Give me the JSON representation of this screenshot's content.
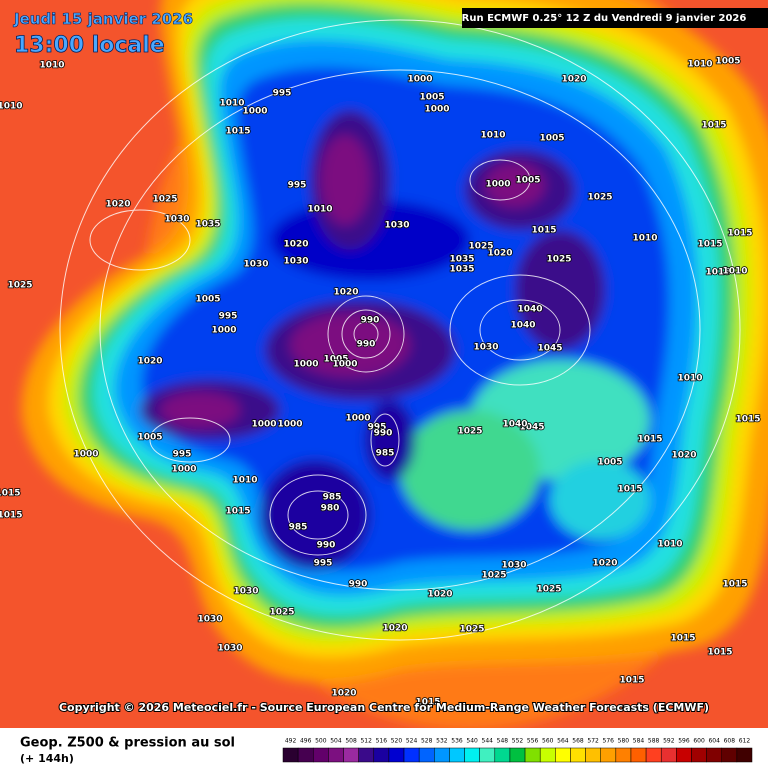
{
  "header": {
    "date": "Jeudi 15 janvier 2026",
    "time": "13:00 locale",
    "run": "Run ECMWF 0.25° 12 Z du Vendredi 9 janvier 2026"
  },
  "copyright": "Copyright © 2026 Meteociel.fr - Source European Centre for Medium-Range Weather Forecasts (ECMWF)",
  "footer": {
    "title": "Geop. Z500 & pression au sol",
    "lead": "(+ 144h)"
  },
  "colorbar": {
    "values": [
      492,
      496,
      500,
      504,
      508,
      512,
      516,
      520,
      524,
      528,
      532,
      536,
      540,
      544,
      548,
      552,
      556,
      560,
      564,
      568,
      572,
      576,
      580,
      584,
      588,
      592,
      596,
      600,
      604,
      608,
      612
    ],
    "colors": [
      "#2a0030",
      "#460050",
      "#62006a",
      "#7c1080",
      "#9a2aa0",
      "#3a0a8a",
      "#1a00a0",
      "#0000d0",
      "#0030ff",
      "#0064ff",
      "#0096ff",
      "#00c8ff",
      "#00f0f0",
      "#40f0c0",
      "#00d890",
      "#00c040",
      "#80e000",
      "#c8ff00",
      "#ffff00",
      "#ffe000",
      "#ffc000",
      "#ffa000",
      "#ff8000",
      "#ff6000",
      "#ff4020",
      "#e83030",
      "#c80000",
      "#a00000",
      "#800000",
      "#600000",
      "#400000"
    ]
  },
  "isobar_labels": [
    "1010",
    "1010",
    "1010",
    "1000",
    "995",
    "1015",
    "995",
    "1010",
    "1020",
    "1025",
    "1030",
    "1035",
    "1020",
    "1030",
    "1030",
    "1025",
    "1005",
    "995",
    "1000",
    "1020",
    "1020",
    "990",
    "990",
    "1005",
    "1000",
    "1000",
    "1000",
    "1000",
    "1000",
    "995",
    "990",
    "985",
    "1005",
    "995",
    "1000",
    "1000",
    "1010",
    "1015",
    "985",
    "980",
    "985",
    "990",
    "995",
    "990",
    "1030",
    "1025",
    "1030",
    "1030",
    "1020",
    "1020",
    "1025",
    "1025",
    "1030",
    "1025",
    "1020",
    "1010",
    "1015",
    "1005",
    "1025",
    "1045",
    "1040",
    "1030",
    "1040",
    "1040",
    "1045",
    "1025",
    "1020",
    "1025",
    "1035",
    "1035",
    "1030",
    "1010",
    "1005",
    "1000",
    "1005",
    "1015",
    "1025",
    "1010",
    "1000",
    "1005",
    "1000",
    "1020",
    "1010",
    "1005",
    "1015",
    "1015",
    "1015",
    "1010",
    "1015",
    "1010",
    "1015",
    "1015",
    "1020",
    "1015",
    "1015",
    "1015",
    "1015",
    "1015",
    "1015",
    "1020",
    "1015"
  ]
}
